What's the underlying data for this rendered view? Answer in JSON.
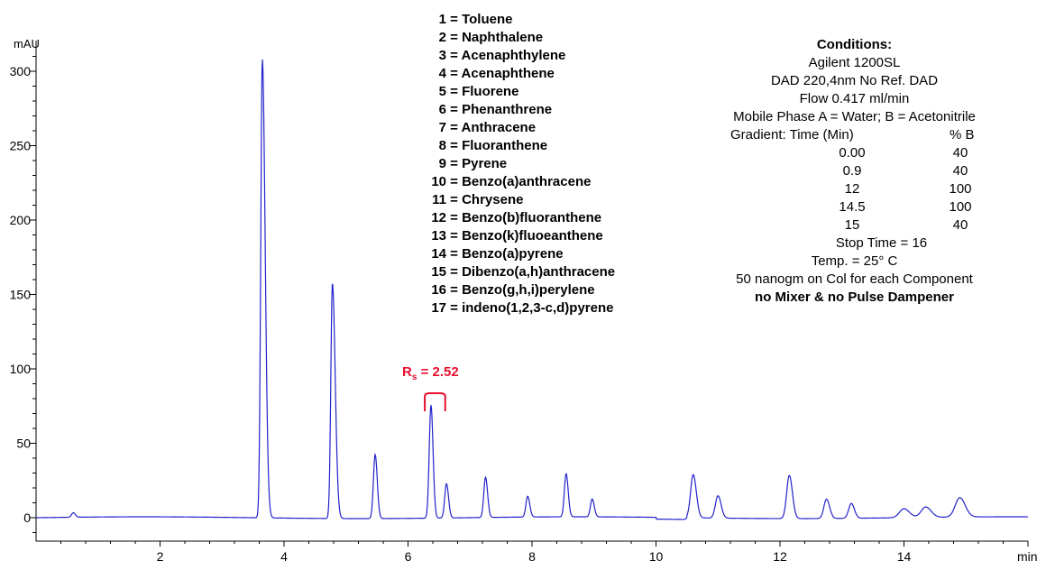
{
  "chart_data": {
    "type": "line",
    "title": "",
    "xlabel": "min",
    "ylabel": "mAU",
    "xlim": [
      0,
      16
    ],
    "ylim": [
      -15,
      320
    ],
    "x_ticks": [
      2,
      4,
      6,
      8,
      10,
      12,
      14
    ],
    "y_ticks": [
      0,
      50,
      100,
      150,
      200,
      250,
      300
    ],
    "grid": false,
    "line_color": "#2222cc",
    "baseline": 0,
    "peaks": [
      {
        "t": 0.6,
        "h": 3
      },
      {
        "t": 3.65,
        "h": 308
      },
      {
        "t": 4.78,
        "h": 158
      },
      {
        "t": 5.47,
        "h": 43
      },
      {
        "t": 6.37,
        "h": 76
      },
      {
        "t": 6.62,
        "h": 23
      },
      {
        "t": 7.25,
        "h": 27
      },
      {
        "t": 7.93,
        "h": 14
      },
      {
        "t": 8.55,
        "h": 29
      },
      {
        "t": 8.97,
        "h": 12
      },
      {
        "t": 10.6,
        "h": 29
      },
      {
        "t": 11.0,
        "h": 15
      },
      {
        "t": 12.15,
        "h": 29
      },
      {
        "t": 12.75,
        "h": 13
      },
      {
        "t": 13.15,
        "h": 10
      },
      {
        "t": 14.0,
        "h": 6
      },
      {
        "t": 14.35,
        "h": 7
      },
      {
        "t": 14.9,
        "h": 13
      }
    ],
    "annotation": {
      "label_main": "R",
      "label_sub": "s",
      "label_rest": " = 2.52",
      "color": "#e8102e"
    }
  },
  "legend_items": [
    {
      "num": "1",
      "name": "= Toluene"
    },
    {
      "num": "2",
      "name": "= Naphthalene"
    },
    {
      "num": "3",
      "name": "= Acenaphthylene"
    },
    {
      "num": "4",
      "name": "= Acenaphthene"
    },
    {
      "num": "5",
      "name": "= Fluorene"
    },
    {
      "num": "6",
      "name": "= Phenanthrene"
    },
    {
      "num": "7",
      "name": "= Anthracene"
    },
    {
      "num": "8",
      "name": "= Fluoranthene"
    },
    {
      "num": "9",
      "name": "= Pyrene"
    },
    {
      "num": "10",
      "name": "= Benzo(a)anthracene"
    },
    {
      "num": "11",
      "name": "= Chrysene"
    },
    {
      "num": "12",
      "name": "= Benzo(b)fluoranthene"
    },
    {
      "num": "13",
      "name": "= Benzo(k)fluoeanthene"
    },
    {
      "num": "14",
      "name": "= Benzo(a)pyrene"
    },
    {
      "num": "15",
      "name": "= Dibenzo(a,h)anthracene"
    },
    {
      "num": "16",
      "name": "= Benzo(g,h,i)perylene"
    },
    {
      "num": "17",
      "name": "= indeno(1,2,3-c,d)pyrene"
    }
  ],
  "conditions": {
    "title": "Conditions:",
    "instrument": "Agilent 1200SL",
    "detector": "DAD 220,4nm No Ref. DAD",
    "flow": "Flow 0.417 ml/min",
    "mobile_phase": "Mobile Phase A = Water; B = Acetonitrile",
    "gradient_label": "Gradient:",
    "time_header": "Time (Min)",
    "b_header": "% B",
    "gradient": [
      {
        "time": "0.00",
        "b": "40"
      },
      {
        "time": "0.9",
        "b": "40"
      },
      {
        "time": "12",
        "b": "100"
      },
      {
        "time": "14.5",
        "b": "100"
      },
      {
        "time": "15",
        "b": "40"
      }
    ],
    "stop_time": "Stop Time = 16",
    "temp": "Temp. = 25° C",
    "load": "50 nanogm on Col for each Component",
    "note": "no Mixer & no Pulse Dampener"
  }
}
